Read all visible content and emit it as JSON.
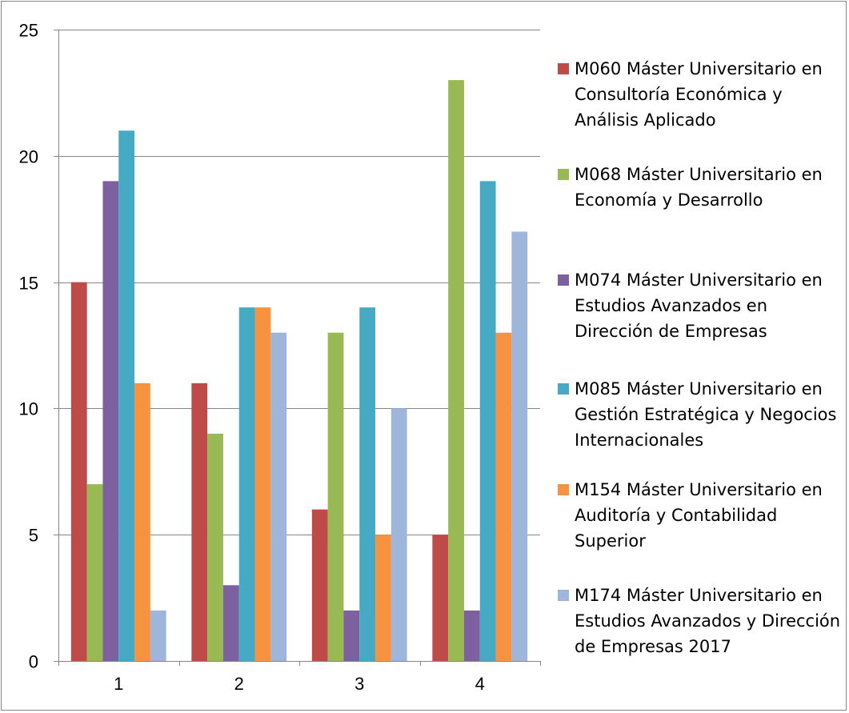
{
  "chart_data": {
    "type": "bar",
    "categories": [
      "1",
      "2",
      "3",
      "4"
    ],
    "series": [
      {
        "name": "M060 Máster Universitario en Consultoría Económica y Análisis Aplicado",
        "color": "#BE4B48",
        "values": [
          15,
          11,
          6,
          5
        ]
      },
      {
        "name": "M068 Máster Universitario en Economía y Desarrollo",
        "color": "#98B954",
        "values": [
          7,
          9,
          13,
          23
        ]
      },
      {
        "name": "M074 Máster Universitario en Estudios Avanzados en Dirección de Empresas",
        "color": "#7D60A0",
        "values": [
          19,
          3,
          2,
          2
        ]
      },
      {
        "name": "M085 Máster Universitario en Gestión Estratégica y Negocios Internacionales",
        "color": "#46AAC5",
        "values": [
          21,
          14,
          14,
          19
        ]
      },
      {
        "name": "M154 Máster Universitario en Auditoría y Contabilidad Superior",
        "color": "#F69240",
        "values": [
          11,
          14,
          5,
          13
        ]
      },
      {
        "name": "M174 Máster Universitario en Estudios Avanzados y Dirección de Empresas 2017",
        "color": "#9EB6DC",
        "values": [
          2,
          13,
          10,
          17
        ]
      }
    ],
    "ylim": [
      0,
      25
    ],
    "yticks": [
      "0",
      "5",
      "10",
      "15",
      "20",
      "25"
    ],
    "grid": true,
    "legend_position": "right"
  }
}
